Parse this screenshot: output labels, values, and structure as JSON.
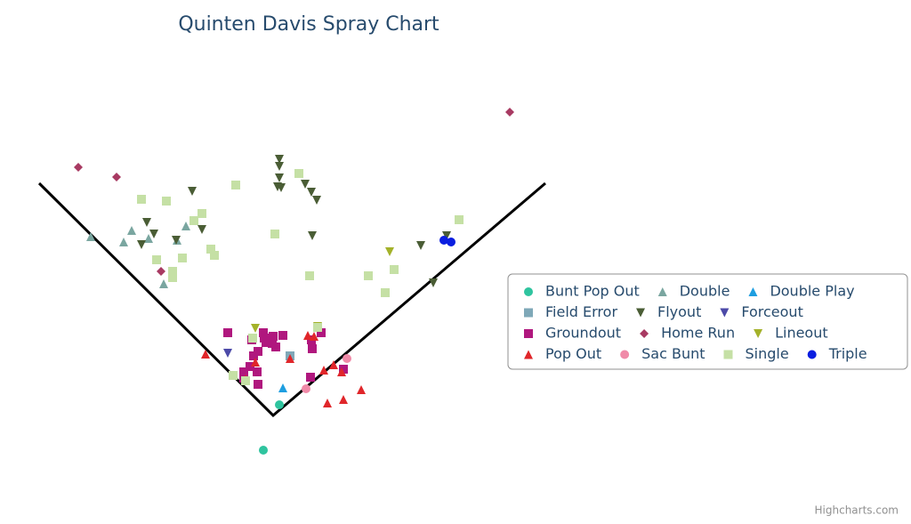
{
  "chart_data": {
    "type": "scatter",
    "title": "Quinten Davis Spray Chart",
    "credits": "Highcharts.com",
    "xlim": [
      -260,
      300
    ],
    "ylim": [
      -50,
      350
    ],
    "series": [
      {
        "name": "Bunt Pop Out",
        "color": "#2fc49f",
        "symbol": "circle",
        "x": [
          7,
          -11
        ],
        "values": [
          12,
          -39
        ]
      },
      {
        "name": "Double",
        "color": "#7aa6a0",
        "symbol": "triangle",
        "x": [
          -205,
          -168,
          -159,
          -140,
          -98,
          -108,
          -123
        ],
        "values": [
          201,
          195,
          208,
          199,
          213,
          197,
          148
        ]
      },
      {
        "name": "Double Play",
        "color": "#1e9ee0",
        "symbol": "triangle",
        "x": [
          11
        ],
        "values": [
          31
        ]
      },
      {
        "name": "Field Error",
        "color": "#7fa8b8",
        "symbol": "square",
        "x": [
          19
        ],
        "values": [
          67
        ]
      },
      {
        "name": "Flyout",
        "color": "#4a5d35",
        "symbol": "triangle-down",
        "x": [
          7,
          7,
          7,
          5,
          9,
          36,
          43,
          49,
          -91,
          -142,
          -134,
          -148,
          -109,
          -80,
          44,
          166,
          195,
          180
        ],
        "values": [
          288,
          280,
          267,
          257,
          256,
          260,
          251,
          242,
          252,
          217,
          204,
          192,
          197,
          209,
          202,
          191,
          202,
          149
        ]
      },
      {
        "name": "Forceout",
        "color": "#4c4aa8",
        "symbol": "triangle-down",
        "x": [
          -51
        ],
        "values": [
          70
        ]
      },
      {
        "name": "Groundout",
        "color": "#b0177e",
        "symbol": "square",
        "x": [
          -51,
          -11,
          0,
          11,
          -8,
          -24,
          -17,
          -1,
          -22,
          -26,
          -33,
          -18,
          -17,
          -33,
          43,
          54,
          42,
          79,
          -10,
          3,
          44
        ],
        "values": [
          93,
          93,
          89,
          90,
          82,
          85,
          72,
          81,
          67,
          55,
          49,
          49,
          35,
          42,
          85,
          93,
          43,
          52,
          87,
          77,
          75
        ]
      },
      {
        "name": "Home Run",
        "color": "#a83a62",
        "symbol": "diamond",
        "x": [
          -219,
          -176,
          -126,
          266
        ],
        "values": [
          279,
          268,
          162,
          341
        ]
      },
      {
        "name": "Lineout",
        "color": "#a4b22a",
        "symbol": "triangle-down",
        "x": [
          -20,
          50,
          131
        ],
        "values": [
          98,
          100,
          184
        ]
      },
      {
        "name": "Pop Out",
        "color": "#e0262a",
        "symbol": "triangle",
        "x": [
          -76,
          -20,
          19,
          39,
          46,
          57,
          68,
          77,
          61,
          79,
          99,
          -31
        ],
        "values": [
          69,
          60,
          64,
          90,
          89,
          51,
          57,
          49,
          14,
          18,
          29,
          41
        ]
      },
      {
        "name": "Sac Bunt",
        "color": "#f08aa8",
        "symbol": "circle",
        "x": [
          83,
          37
        ],
        "values": [
          64,
          30
        ]
      },
      {
        "name": "Single",
        "color": "#c5e0a5",
        "symbol": "square",
        "x": [
          -148,
          -120,
          -42,
          -80,
          -89,
          -70,
          -66,
          -102,
          -131,
          -113,
          -113,
          2,
          29,
          41,
          107,
          136,
          126,
          209,
          -23,
          -45,
          -31,
          50
        ],
        "values": [
          243,
          241,
          259,
          227,
          219,
          187,
          180,
          177,
          175,
          162,
          155,
          204,
          272,
          157,
          157,
          164,
          138,
          220,
          87,
          45,
          39,
          99
        ]
      },
      {
        "name": "Triple",
        "color": "#0a1ee0",
        "symbol": "circle",
        "x": [
          192,
          200
        ],
        "values": [
          197,
          195
        ]
      }
    ]
  }
}
